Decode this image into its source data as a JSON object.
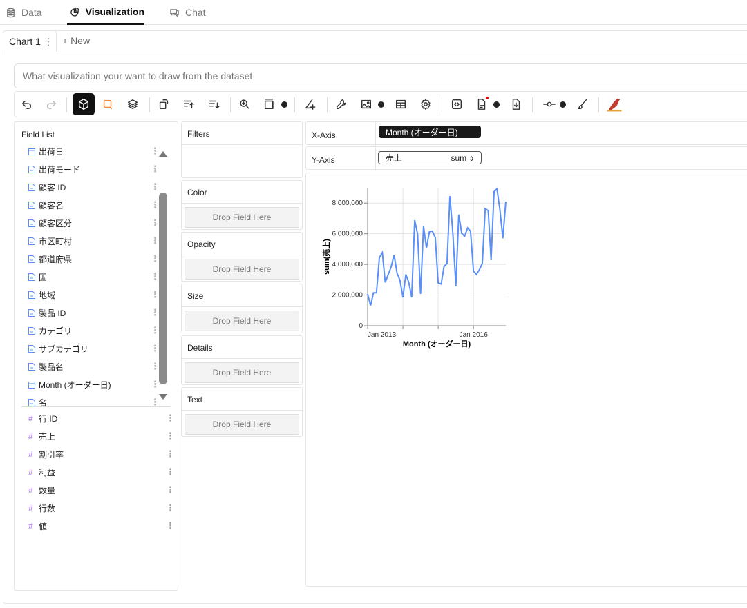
{
  "top_tabs": [
    {
      "label": "Data",
      "icon": "database-icon"
    },
    {
      "label": "Visualization",
      "icon": "chart-pie-icon",
      "active": true
    },
    {
      "label": "Chat",
      "icon": "chat-icon"
    }
  ],
  "chart_tabs": {
    "current": "Chart 1",
    "new_label": "+ New"
  },
  "prompt": {
    "placeholder": "What visualization your want to draw from the dataset",
    "value": ""
  },
  "toolbar": [
    "undo-icon",
    "redo-icon",
    "cube-icon",
    "lasso-icon",
    "layers-icon",
    "transpose-icon",
    "sort-ascending-icon",
    "sort-descending-icon",
    "zoom-in-icon",
    "resize-icon",
    "axes-icon",
    "wrench-icon",
    "image-icon",
    "table-icon",
    "settings-icon",
    "code-icon",
    "export-file-icon",
    "download-icon",
    "timeline-icon",
    "brush-icon",
    "logo-icon"
  ],
  "accent_color": "#5b8ff9",
  "field_list": {
    "title": "Field List",
    "dimensions": [
      {
        "label": "出荷日",
        "type": "date"
      },
      {
        "label": "出荷モード",
        "type": "text"
      },
      {
        "label": "顧客 ID",
        "type": "text"
      },
      {
        "label": "顧客名",
        "type": "text"
      },
      {
        "label": "顧客区分",
        "type": "text"
      },
      {
        "label": "市区町村",
        "type": "text"
      },
      {
        "label": "都道府県",
        "type": "text"
      },
      {
        "label": "国",
        "type": "text"
      },
      {
        "label": "地域",
        "type": "text"
      },
      {
        "label": "製品 ID",
        "type": "text"
      },
      {
        "label": "カテゴリ",
        "type": "text"
      },
      {
        "label": "サブカテゴリ",
        "type": "text"
      },
      {
        "label": "製品名",
        "type": "text"
      },
      {
        "label": "Month (オーダー日)",
        "type": "date"
      },
      {
        "label": "名",
        "type": "text"
      }
    ],
    "measures": [
      {
        "label": "行 ID"
      },
      {
        "label": "売上"
      },
      {
        "label": "割引率"
      },
      {
        "label": "利益"
      },
      {
        "label": "数量"
      },
      {
        "label": "行数"
      },
      {
        "label": "値"
      }
    ]
  },
  "encodings": {
    "filters": "Filters",
    "channels": [
      {
        "label": "Color",
        "drop": "Drop Field Here"
      },
      {
        "label": "Opacity",
        "drop": "Drop Field Here"
      },
      {
        "label": "Size",
        "drop": "Drop Field Here"
      },
      {
        "label": "Details",
        "drop": "Drop Field Here"
      },
      {
        "label": "Text",
        "drop": "Drop Field Here"
      }
    ],
    "x_axis": {
      "label": "X-Axis",
      "field": "Month (オーダー日)"
    },
    "y_axis": {
      "label": "Y-Axis",
      "field": "売上",
      "aggregate": "sum"
    }
  },
  "chart_data": {
    "type": "line",
    "xlabel": "Month (オーダー日)",
    "ylabel": "sum(売上)",
    "x_start": "2013-01",
    "x_end": "2016-12",
    "x_ticks": [
      "Jan 2013",
      "",
      "",
      "Jan 2016"
    ],
    "y_ticks": [
      "0",
      "2,000,000",
      "4,000,000",
      "6,000,000",
      "8,000,000"
    ],
    "ylim": [
      0,
      9000000
    ],
    "grid": true,
    "color": "#5b8ff9",
    "values": [
      2070000,
      1320000,
      2150000,
      2150000,
      4430000,
      4770000,
      2820000,
      3350000,
      3830000,
      4620000,
      3420000,
      2970000,
      1850000,
      3350000,
      2820000,
      1850000,
      6880000,
      5980000,
      2070000,
      6500000,
      5070000,
      6130000,
      6170000,
      5750000,
      2790000,
      2720000,
      3870000,
      4050000,
      8450000,
      5980000,
      2570000,
      7250000,
      6020000,
      5830000,
      6380000,
      6170000,
      3570000,
      3350000,
      3650000,
      4070000,
      7630000,
      7510000,
      4280000,
      8750000,
      8930000,
      7550000,
      5700000,
      8100000
    ]
  }
}
